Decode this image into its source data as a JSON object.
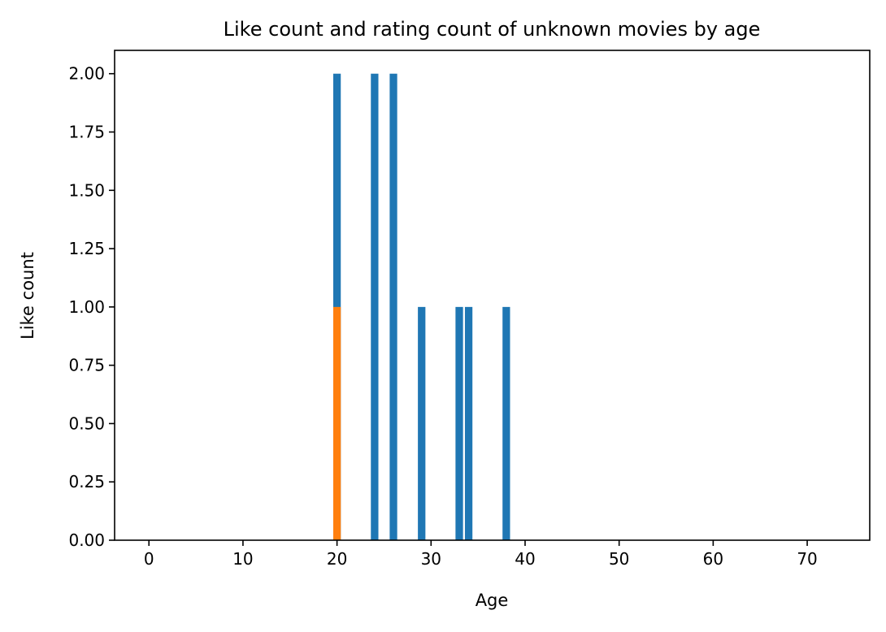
{
  "chart_data": {
    "type": "bar",
    "title": "Like count and rating count of unknown movies by age",
    "xlabel": "Age",
    "ylabel": "Like count",
    "xlim": [
      -3.65,
      76.65
    ],
    "ylim": [
      0,
      2.1
    ],
    "xticks": [
      0,
      10,
      20,
      30,
      40,
      50,
      60,
      70
    ],
    "yticks": [
      0.0,
      0.25,
      0.5,
      0.75,
      1.0,
      1.25,
      1.5,
      1.75,
      2.0
    ],
    "ytick_labels": [
      "0.00",
      "0.25",
      "0.50",
      "0.75",
      "1.00",
      "1.25",
      "1.50",
      "1.75",
      "2.00"
    ],
    "grid": false,
    "bar_width": 0.8,
    "series": [
      {
        "color": "#1f77b4",
        "x": [
          20,
          24,
          26,
          29,
          33,
          34,
          38
        ],
        "values": [
          2,
          2,
          2,
          1,
          1,
          1,
          1
        ]
      },
      {
        "color": "#ff7f0e",
        "x": [
          20
        ],
        "values": [
          1
        ]
      }
    ]
  }
}
